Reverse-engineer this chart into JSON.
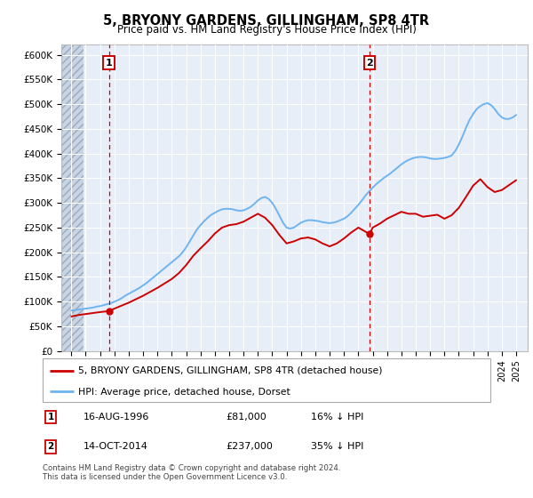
{
  "title": "5, BRYONY GARDENS, GILLINGHAM, SP8 4TR",
  "subtitle": "Price paid vs. HM Land Registry's House Price Index (HPI)",
  "ylim": [
    0,
    620000
  ],
  "yticks": [
    0,
    50000,
    100000,
    150000,
    200000,
    250000,
    300000,
    350000,
    400000,
    450000,
    500000,
    550000,
    600000
  ],
  "ytick_labels": [
    "£0",
    "£50K",
    "£100K",
    "£150K",
    "£200K",
    "£250K",
    "£300K",
    "£350K",
    "£400K",
    "£450K",
    "£500K",
    "£550K",
    "£600K"
  ],
  "xlim_start": 1993.3,
  "xlim_end": 2025.8,
  "hatch_end": 1994.85,
  "sale1_x": 1996.62,
  "sale1_y": 81000,
  "sale1_label": "1",
  "sale2_x": 2014.78,
  "sale2_y": 237000,
  "sale2_label": "2",
  "hpi_color": "#6EB4F0",
  "price_color": "#CC0000",
  "vline_color": "#CC0000",
  "bg_color": "#E8EEF8",
  "hatch_bg": "#C8D4E4",
  "grid_color": "#FFFFFF",
  "marker_box_color": "#CC0000",
  "legend_line1": "5, BRYONY GARDENS, GILLINGHAM, SP8 4TR (detached house)",
  "legend_line2": "HPI: Average price, detached house, Dorset",
  "annotation1": [
    "1",
    "16-AUG-1996",
    "£81,000",
    "16% ↓ HPI"
  ],
  "annotation2": [
    "2",
    "14-OCT-2014",
    "£237,000",
    "35% ↓ HPI"
  ],
  "footer": "Contains HM Land Registry data © Crown copyright and database right 2024.\nThis data is licensed under the Open Government Licence v3.0.",
  "hpi_years": [
    1994.0,
    1994.25,
    1994.5,
    1994.75,
    1995.0,
    1995.25,
    1995.5,
    1995.75,
    1996.0,
    1996.25,
    1996.5,
    1996.75,
    1997.0,
    1997.25,
    1997.5,
    1997.75,
    1998.0,
    1998.25,
    1998.5,
    1998.75,
    1999.0,
    1999.25,
    1999.5,
    1999.75,
    2000.0,
    2000.25,
    2000.5,
    2000.75,
    2001.0,
    2001.25,
    2001.5,
    2001.75,
    2002.0,
    2002.25,
    2002.5,
    2002.75,
    2003.0,
    2003.25,
    2003.5,
    2003.75,
    2004.0,
    2004.25,
    2004.5,
    2004.75,
    2005.0,
    2005.25,
    2005.5,
    2005.75,
    2006.0,
    2006.25,
    2006.5,
    2006.75,
    2007.0,
    2007.25,
    2007.5,
    2007.75,
    2008.0,
    2008.25,
    2008.5,
    2008.75,
    2009.0,
    2009.25,
    2009.5,
    2009.75,
    2010.0,
    2010.25,
    2010.5,
    2010.75,
    2011.0,
    2011.25,
    2011.5,
    2011.75,
    2012.0,
    2012.25,
    2012.5,
    2012.75,
    2013.0,
    2013.25,
    2013.5,
    2013.75,
    2014.0,
    2014.25,
    2014.5,
    2014.75,
    2015.0,
    2015.25,
    2015.5,
    2015.75,
    2016.0,
    2016.25,
    2016.5,
    2016.75,
    2017.0,
    2017.25,
    2017.5,
    2017.75,
    2018.0,
    2018.25,
    2018.5,
    2018.75,
    2019.0,
    2019.25,
    2019.5,
    2019.75,
    2020.0,
    2020.25,
    2020.5,
    2020.75,
    2021.0,
    2021.25,
    2021.5,
    2021.75,
    2022.0,
    2022.25,
    2022.5,
    2022.75,
    2023.0,
    2023.25,
    2023.5,
    2023.75,
    2024.0,
    2024.25,
    2024.5,
    2024.75,
    2025.0
  ],
  "hpi_values": [
    82000,
    83000,
    84000,
    85000,
    86000,
    87000,
    88000,
    90000,
    91000,
    93000,
    95000,
    97000,
    100000,
    103000,
    107000,
    112000,
    116000,
    120000,
    124000,
    128000,
    133000,
    138000,
    144000,
    150000,
    156000,
    162000,
    168000,
    174000,
    180000,
    186000,
    192000,
    200000,
    210000,
    222000,
    234000,
    246000,
    255000,
    263000,
    270000,
    276000,
    280000,
    284000,
    287000,
    288000,
    288000,
    287000,
    285000,
    284000,
    285000,
    288000,
    292000,
    298000,
    305000,
    310000,
    312000,
    308000,
    300000,
    288000,
    274000,
    260000,
    250000,
    248000,
    250000,
    255000,
    260000,
    263000,
    265000,
    265000,
    264000,
    263000,
    261000,
    260000,
    259000,
    260000,
    262000,
    265000,
    268000,
    273000,
    280000,
    288000,
    296000,
    305000,
    315000,
    323000,
    331000,
    338000,
    344000,
    350000,
    355000,
    360000,
    366000,
    372000,
    378000,
    383000,
    387000,
    390000,
    392000,
    393000,
    393000,
    392000,
    390000,
    389000,
    389000,
    390000,
    391000,
    393000,
    396000,
    405000,
    418000,
    434000,
    452000,
    468000,
    480000,
    490000,
    496000,
    500000,
    502000,
    498000,
    490000,
    480000,
    473000,
    470000,
    470000,
    473000,
    478000
  ],
  "price_years": [
    1994.0,
    1994.5,
    1995.0,
    1995.5,
    1996.0,
    1996.62,
    1997.0,
    1997.5,
    1998.0,
    1998.5,
    1999.0,
    1999.5,
    2000.0,
    2000.5,
    2001.0,
    2001.5,
    2002.0,
    2002.5,
    2003.0,
    2003.5,
    2004.0,
    2004.5,
    2005.0,
    2005.5,
    2006.0,
    2006.5,
    2007.0,
    2007.5,
    2008.0,
    2008.5,
    2009.0,
    2009.5,
    2010.0,
    2010.5,
    2011.0,
    2011.5,
    2012.0,
    2012.5,
    2013.0,
    2013.5,
    2014.0,
    2014.78,
    2015.0,
    2015.5,
    2016.0,
    2016.5,
    2017.0,
    2017.5,
    2018.0,
    2018.5,
    2019.0,
    2019.5,
    2020.0,
    2020.5,
    2021.0,
    2021.5,
    2022.0,
    2022.5,
    2023.0,
    2023.5,
    2024.0,
    2024.5,
    2025.0
  ],
  "price_values": [
    70000,
    73000,
    75000,
    77000,
    79000,
    81000,
    86000,
    92000,
    98000,
    105000,
    112000,
    120000,
    128000,
    137000,
    146000,
    158000,
    174000,
    193000,
    208000,
    222000,
    238000,
    250000,
    255000,
    257000,
    262000,
    270000,
    278000,
    270000,
    255000,
    235000,
    218000,
    222000,
    228000,
    230000,
    226000,
    218000,
    212000,
    218000,
    228000,
    240000,
    250000,
    237000,
    250000,
    258000,
    268000,
    275000,
    282000,
    278000,
    278000,
    272000,
    274000,
    276000,
    268000,
    275000,
    290000,
    312000,
    335000,
    348000,
    332000,
    322000,
    326000,
    336000,
    346000
  ]
}
